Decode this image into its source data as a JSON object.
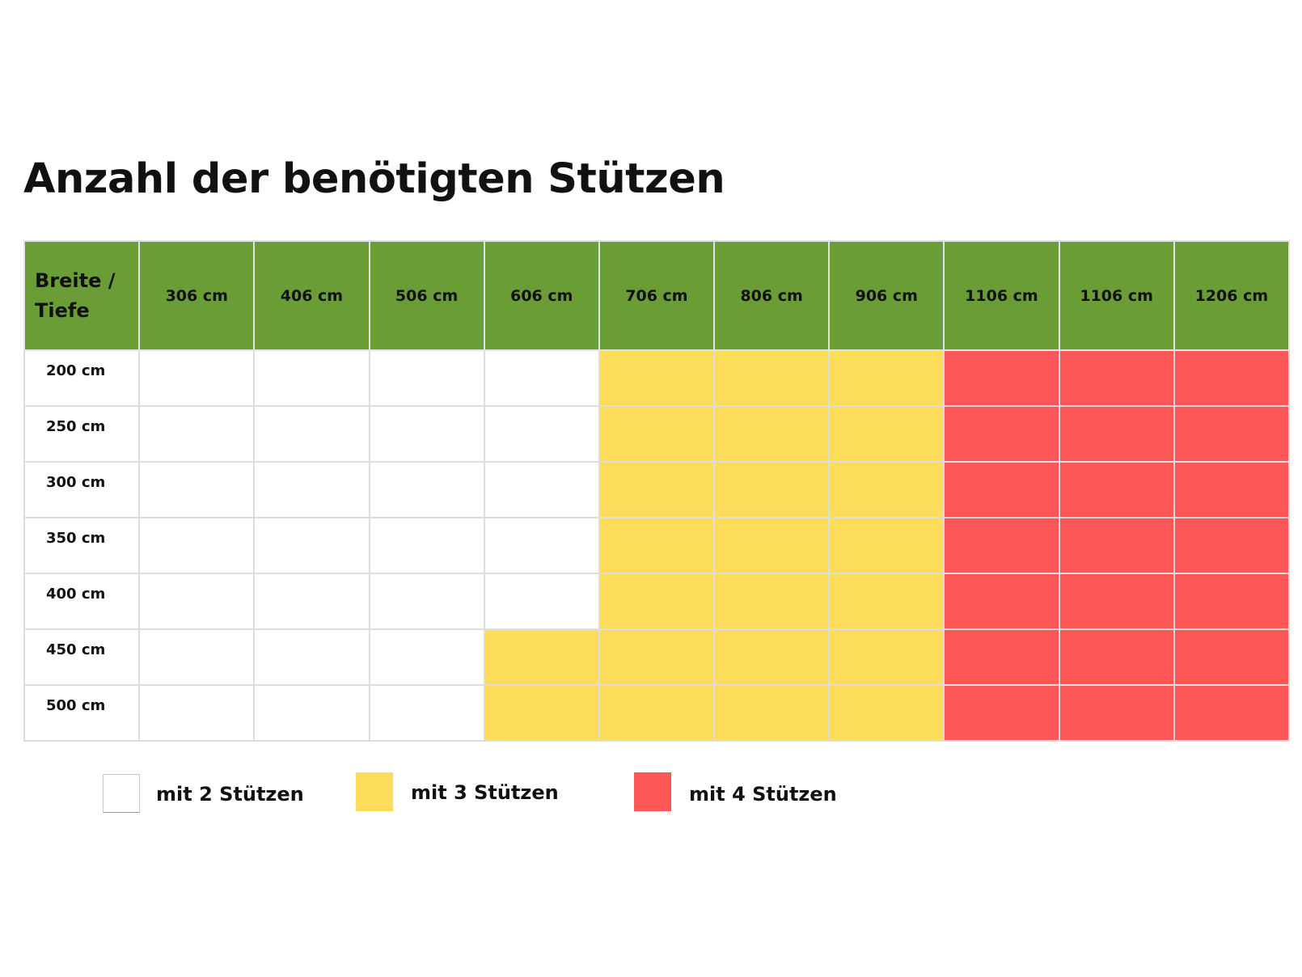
{
  "title": "Anzahl der benötigten Stützen",
  "colors": {
    "header": "#6a9d36",
    "mit_2": "#ffffff",
    "mit_3": "#fddc5c",
    "mit_4": "#fe5757",
    "grid_line": "#dddddd"
  },
  "chart_data": {
    "type": "table",
    "title": "Anzahl der benötigten Stützen",
    "corner_label": [
      "Breite /",
      "Tiefe"
    ],
    "columns": [
      "306 cm",
      "406 cm",
      "506 cm",
      "606 cm",
      "706 cm",
      "806 cm",
      "906 cm",
      "1106 cm",
      "1106 cm",
      "1206 cm"
    ],
    "rows": [
      {
        "label": "200 cm",
        "values": [
          2,
          2,
          2,
          2,
          3,
          3,
          3,
          4,
          4,
          4
        ]
      },
      {
        "label": "250 cm",
        "values": [
          2,
          2,
          2,
          2,
          3,
          3,
          3,
          4,
          4,
          4
        ]
      },
      {
        "label": "300 cm",
        "values": [
          2,
          2,
          2,
          2,
          3,
          3,
          3,
          4,
          4,
          4
        ]
      },
      {
        "label": "350 cm",
        "values": [
          2,
          2,
          2,
          2,
          3,
          3,
          3,
          4,
          4,
          4
        ]
      },
      {
        "label": "400 cm",
        "values": [
          2,
          2,
          2,
          2,
          3,
          3,
          3,
          4,
          4,
          4
        ]
      },
      {
        "label": "450 cm",
        "values": [
          2,
          2,
          2,
          3,
          3,
          3,
          3,
          4,
          4,
          4
        ]
      },
      {
        "label": "500 cm",
        "values": [
          2,
          2,
          2,
          3,
          3,
          3,
          3,
          4,
          4,
          4
        ]
      }
    ],
    "legend": [
      {
        "value": 2,
        "label": "mit 2 Stützen",
        "color": "#ffffff"
      },
      {
        "value": 3,
        "label": "mit 3 Stützen",
        "color": "#fddc5c"
      },
      {
        "value": 4,
        "label": "mit 4 Stützen",
        "color": "#fe5757"
      }
    ]
  }
}
